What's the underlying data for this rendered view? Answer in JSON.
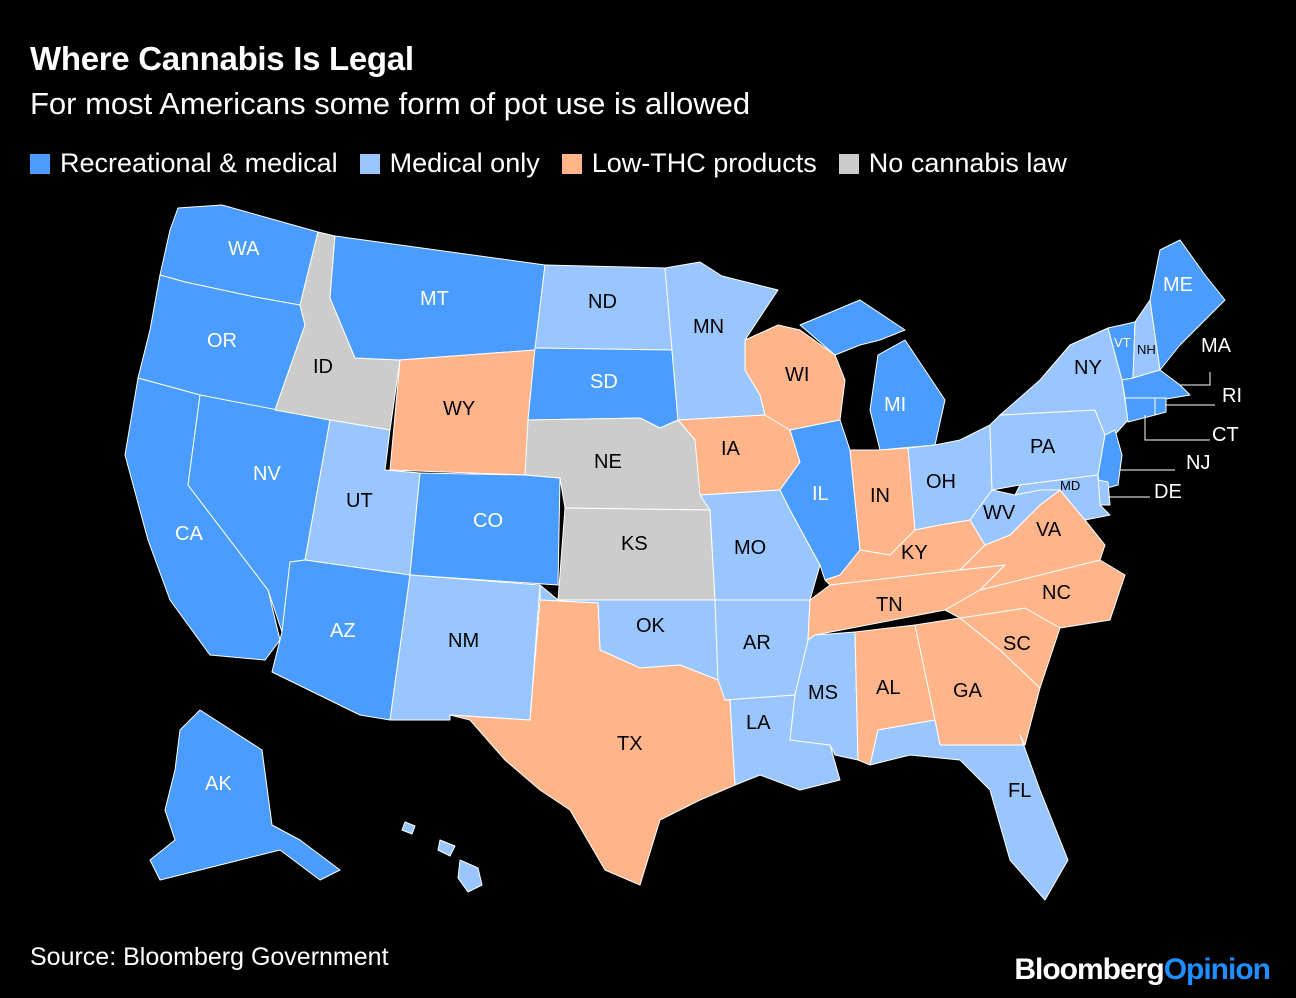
{
  "title": "Where Cannabis Is Legal",
  "subtitle": "For most Americans some form of pot use is allowed",
  "legend": [
    {
      "key": "rec",
      "label": "Recreational & medical",
      "color": "#4a9cff"
    },
    {
      "key": "med",
      "label": "Medical only",
      "color": "#99c6ff"
    },
    {
      "key": "low",
      "label": "Low-THC products",
      "color": "#ffb48a"
    },
    {
      "key": "none",
      "label": "No cannabis law",
      "color": "#cccccc"
    }
  ],
  "states": {
    "WA": "rec",
    "OR": "rec",
    "CA": "rec",
    "NV": "rec",
    "ID": "none",
    "MT": "rec",
    "WY": "low",
    "UT": "med",
    "AZ": "rec",
    "CO": "rec",
    "NM": "med",
    "ND": "med",
    "SD": "rec",
    "NE": "none",
    "KS": "none",
    "OK": "med",
    "TX": "low",
    "MN": "med",
    "IA": "low",
    "MO": "med",
    "AR": "med",
    "LA": "med",
    "WI": "low",
    "IL": "rec",
    "MI": "rec",
    "IN": "low",
    "OH": "med",
    "KY": "low",
    "TN": "low",
    "MS": "med",
    "AL": "low",
    "GA": "low",
    "FL": "med",
    "SC": "low",
    "NC": "low",
    "VA": "low",
    "WV": "med",
    "PA": "med",
    "NY": "med",
    "VT": "rec",
    "NH": "med",
    "ME": "rec",
    "MA": "rec",
    "RI": "rec",
    "CT": "rec",
    "NJ": "rec",
    "DE": "med",
    "MD": "med",
    "AK": "rec",
    "HI": "med"
  },
  "labels": {
    "WA": "WA",
    "OR": "OR",
    "CA": "CA",
    "NV": "NV",
    "ID": "ID",
    "MT": "MT",
    "WY": "WY",
    "UT": "UT",
    "AZ": "AZ",
    "CO": "CO",
    "NM": "NM",
    "ND": "ND",
    "SD": "SD",
    "NE": "NE",
    "KS": "KS",
    "OK": "OK",
    "TX": "TX",
    "MN": "MN",
    "IA": "IA",
    "MO": "MO",
    "AR": "AR",
    "LA": "LA",
    "WI": "WI",
    "IL": "IL",
    "MI": "MI",
    "IN": "IN",
    "OH": "OH",
    "KY": "KY",
    "TN": "TN",
    "MS": "MS",
    "AL": "AL",
    "GA": "GA",
    "FL": "FL",
    "SC": "SC",
    "NC": "NC",
    "VA": "VA",
    "WV": "WV",
    "PA": "PA",
    "NY": "NY",
    "VT": "VT",
    "NH": "NH",
    "ME": "ME",
    "MA": "MA",
    "RI": "RI",
    "CT": "CT",
    "NJ": "NJ",
    "DE": "DE",
    "MD": "MD",
    "AK": "AK"
  },
  "source": "Source: Bloomberg Government",
  "brand": {
    "bloomberg": "Bloomberg",
    "opinion": "Opinion"
  }
}
